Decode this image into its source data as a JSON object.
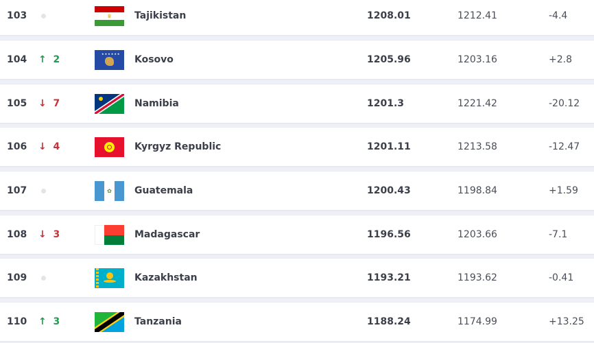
{
  "rows": [
    {
      "rank": "103",
      "move": "",
      "dir": "none",
      "country": "Tajikistan",
      "flag": "tajikistan-flag",
      "points": "1208.01",
      "previous": "1212.41",
      "change": "-4.4"
    },
    {
      "rank": "104",
      "move": "2",
      "dir": "up",
      "country": "Kosovo",
      "flag": "kosovo-flag",
      "points": "1205.96",
      "previous": "1203.16",
      "change": "+2.8"
    },
    {
      "rank": "105",
      "move": "7",
      "dir": "down",
      "country": "Namibia",
      "flag": "namibia-flag",
      "points": "1201.3",
      "previous": "1221.42",
      "change": "-20.12"
    },
    {
      "rank": "106",
      "move": "4",
      "dir": "down",
      "country": "Kyrgyz Republic",
      "flag": "kyrgyz-flag",
      "points": "1201.11",
      "previous": "1213.58",
      "change": "-12.47"
    },
    {
      "rank": "107",
      "move": "",
      "dir": "none",
      "country": "Guatemala",
      "flag": "guatemala-flag",
      "points": "1200.43",
      "previous": "1198.84",
      "change": "+1.59"
    },
    {
      "rank": "108",
      "move": "3",
      "dir": "down",
      "country": "Madagascar",
      "flag": "madagascar-flag",
      "points": "1196.56",
      "previous": "1203.66",
      "change": "-7.1"
    },
    {
      "rank": "109",
      "move": "",
      "dir": "none",
      "country": "Kazakhstan",
      "flag": "kazakhstan-flag",
      "points": "1193.21",
      "previous": "1193.62",
      "change": "-0.41"
    },
    {
      "rank": "110",
      "move": "3",
      "dir": "up",
      "country": "Tanzania",
      "flag": "tanzania-flag",
      "points": "1188.24",
      "previous": "1174.99",
      "change": "+13.25"
    }
  ],
  "colors": {
    "up": "#1f9e4f",
    "down": "#c8323a"
  }
}
